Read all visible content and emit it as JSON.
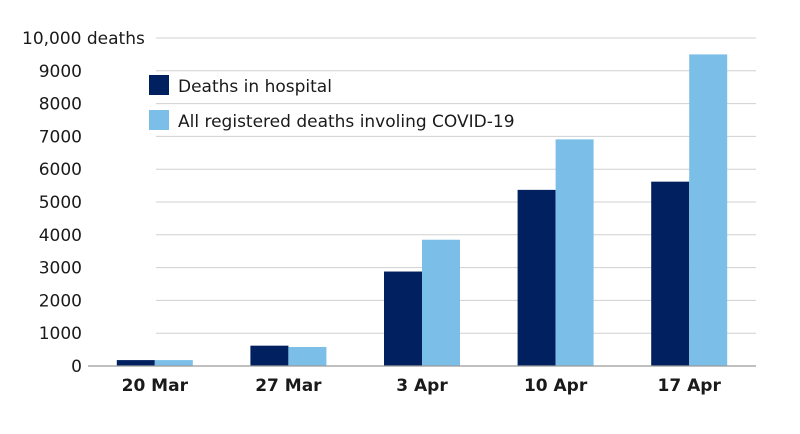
{
  "chart_data": {
    "type": "bar",
    "categories": [
      "20 Mar",
      "27 Mar",
      "3 Apr",
      "10 Apr",
      "17 Apr"
    ],
    "series": [
      {
        "name": "Deaths in hospital",
        "color": "#002060",
        "values": [
          180,
          620,
          2880,
          5370,
          5620
        ]
      },
      {
        "name": "All registered deaths involing COVID-19",
        "color": "#7bbfe8",
        "values": [
          180,
          580,
          3850,
          6910,
          9500
        ]
      }
    ],
    "ylim": [
      0,
      10000
    ],
    "yticks": [
      0,
      1000,
      2000,
      3000,
      4000,
      5000,
      6000,
      7000,
      8000,
      9000,
      10000
    ],
    "ytick_labels": [
      "0",
      "1000",
      "2000",
      "3000",
      "4000",
      "5000",
      "6000",
      "7000",
      "8000",
      "9000",
      "10,000 deaths"
    ],
    "grid": true,
    "legend_position": "top-left"
  }
}
